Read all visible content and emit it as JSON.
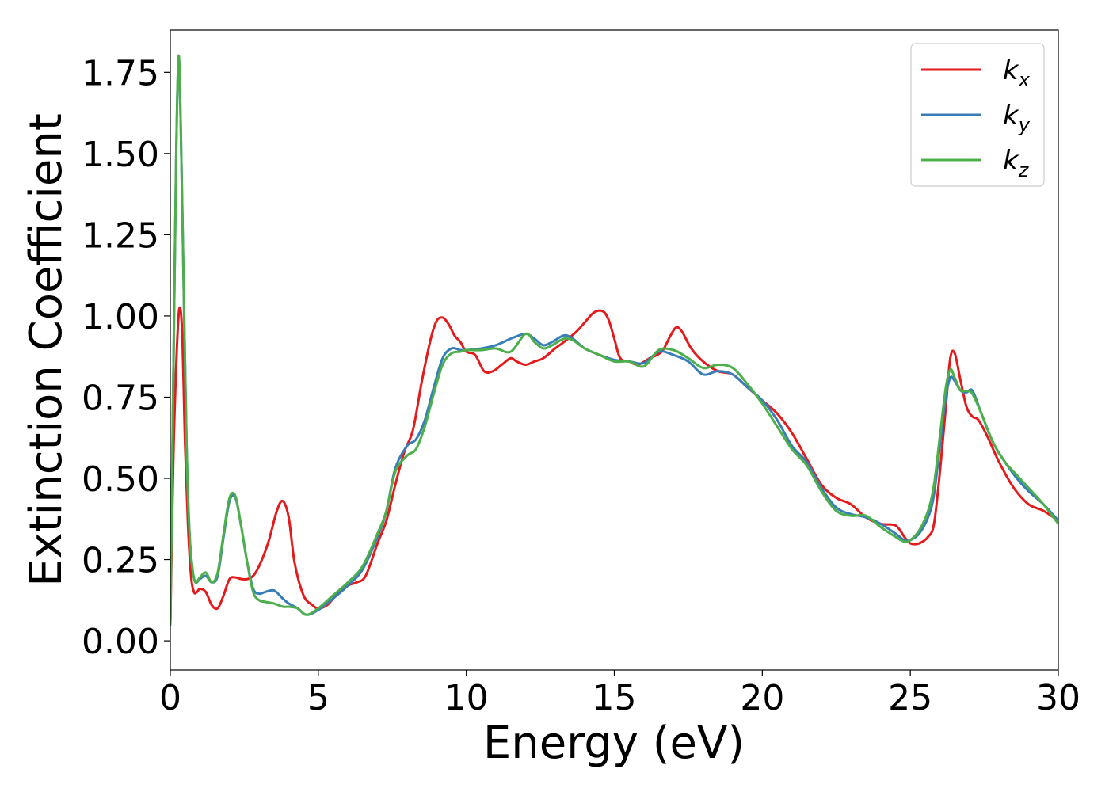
{
  "chart_data": {
    "type": "line",
    "title": "",
    "xlabel": "Energy (eV)",
    "ylabel": "Extinction Coefficient",
    "xlim": [
      0,
      30
    ],
    "ylim": [
      -0.09,
      1.88
    ],
    "xticks": [
      0,
      5,
      10,
      15,
      20,
      25,
      30
    ],
    "xtick_labels": [
      "0",
      "5",
      "10",
      "15",
      "20",
      "25",
      "30"
    ],
    "yticks": [
      0.0,
      0.25,
      0.5,
      0.75,
      1.0,
      1.25,
      1.5,
      1.75
    ],
    "ytick_labels": [
      "0.00",
      "0.25",
      "0.50",
      "0.75",
      "1.00",
      "1.25",
      "1.50",
      "1.75"
    ],
    "grid": false,
    "legend_position": "top-right",
    "series": [
      {
        "name": "k_x",
        "label_main": "k",
        "label_sub": "x",
        "color": "#e41a1c",
        "x": [
          0,
          0.1,
          0.2,
          0.3,
          0.4,
          0.5,
          0.6,
          0.7,
          0.8,
          0.9,
          1.0,
          1.2,
          1.4,
          1.6,
          1.8,
          2.0,
          2.2,
          2.4,
          2.6,
          2.8,
          3.0,
          3.3,
          3.6,
          3.8,
          4.0,
          4.2,
          4.5,
          4.8,
          5.0,
          5.3,
          5.6,
          6.0,
          6.3,
          6.6,
          7.0,
          7.3,
          7.6,
          7.9,
          8.2,
          8.5,
          8.8,
          9.0,
          9.2,
          9.4,
          9.6,
          9.8,
          10.0,
          10.3,
          10.6,
          10.9,
          11.2,
          11.5,
          11.7,
          12.0,
          12.3,
          12.6,
          13.0,
          13.3,
          13.7,
          14.0,
          14.3,
          14.6,
          14.8,
          15.0,
          15.2,
          15.5,
          15.8,
          16.2,
          16.6,
          16.9,
          17.1,
          17.3,
          17.6,
          18.0,
          18.5,
          19.0,
          19.5,
          20.0,
          20.5,
          21.0,
          21.5,
          22.0,
          22.5,
          23.0,
          23.5,
          24.0,
          24.5,
          24.8,
          25.0,
          25.3,
          25.6,
          25.8,
          26.0,
          26.2,
          26.35,
          26.5,
          26.7,
          26.9,
          27.1,
          27.3,
          27.6,
          28.0,
          28.5,
          29.0,
          29.5,
          30.0
        ],
        "y": [
          0.05,
          0.55,
          0.85,
          1.02,
          0.95,
          0.6,
          0.35,
          0.2,
          0.15,
          0.15,
          0.16,
          0.15,
          0.11,
          0.1,
          0.14,
          0.19,
          0.195,
          0.19,
          0.19,
          0.2,
          0.23,
          0.3,
          0.4,
          0.43,
          0.38,
          0.24,
          0.14,
          0.11,
          0.1,
          0.11,
          0.14,
          0.17,
          0.18,
          0.2,
          0.3,
          0.37,
          0.48,
          0.58,
          0.65,
          0.8,
          0.93,
          0.985,
          0.995,
          0.975,
          0.94,
          0.92,
          0.89,
          0.88,
          0.83,
          0.83,
          0.85,
          0.87,
          0.86,
          0.85,
          0.86,
          0.87,
          0.9,
          0.92,
          0.95,
          0.98,
          1.01,
          1.015,
          0.99,
          0.93,
          0.87,
          0.86,
          0.85,
          0.87,
          0.89,
          0.94,
          0.965,
          0.95,
          0.9,
          0.86,
          0.83,
          0.82,
          0.78,
          0.74,
          0.7,
          0.64,
          0.56,
          0.48,
          0.44,
          0.42,
          0.38,
          0.36,
          0.355,
          0.32,
          0.3,
          0.3,
          0.32,
          0.36,
          0.52,
          0.72,
          0.87,
          0.885,
          0.8,
          0.72,
          0.69,
          0.68,
          0.63,
          0.55,
          0.47,
          0.42,
          0.4,
          0.37
        ]
      },
      {
        "name": "k_y",
        "label_main": "k",
        "label_sub": "y",
        "color": "#377eb8",
        "x": [
          0,
          0.1,
          0.2,
          0.28,
          0.35,
          0.45,
          0.55,
          0.65,
          0.75,
          0.85,
          1.0,
          1.2,
          1.4,
          1.6,
          1.8,
          2.0,
          2.2,
          2.4,
          2.6,
          2.8,
          3.0,
          3.2,
          3.5,
          3.8,
          4.0,
          4.3,
          4.6,
          5.0,
          5.5,
          6.0,
          6.5,
          7.0,
          7.3,
          7.6,
          8.0,
          8.3,
          8.6,
          8.9,
          9.2,
          9.5,
          9.8,
          10.0,
          10.5,
          11.0,
          11.5,
          12.0,
          12.3,
          12.6,
          12.9,
          13.3,
          13.6,
          14.0,
          14.5,
          15.0,
          15.5,
          16.0,
          16.5,
          17.0,
          17.5,
          18.0,
          18.5,
          19.0,
          19.5,
          20.0,
          20.5,
          21.0,
          21.5,
          22.0,
          22.5,
          23.0,
          23.5,
          24.0,
          24.5,
          24.8,
          25.0,
          25.3,
          25.6,
          25.8,
          26.0,
          26.2,
          26.35,
          26.5,
          26.7,
          26.9,
          27.1,
          27.4,
          27.8,
          28.2,
          28.6,
          29.0,
          29.5,
          30.0
        ],
        "y": [
          0.05,
          0.8,
          1.5,
          1.79,
          1.6,
          1.1,
          0.6,
          0.33,
          0.22,
          0.18,
          0.19,
          0.2,
          0.18,
          0.2,
          0.32,
          0.43,
          0.44,
          0.35,
          0.24,
          0.16,
          0.145,
          0.15,
          0.155,
          0.13,
          0.115,
          0.1,
          0.08,
          0.095,
          0.13,
          0.17,
          0.22,
          0.32,
          0.4,
          0.53,
          0.6,
          0.62,
          0.68,
          0.78,
          0.87,
          0.9,
          0.895,
          0.895,
          0.9,
          0.91,
          0.93,
          0.945,
          0.93,
          0.91,
          0.92,
          0.94,
          0.93,
          0.9,
          0.88,
          0.865,
          0.86,
          0.855,
          0.89,
          0.88,
          0.86,
          0.82,
          0.83,
          0.82,
          0.78,
          0.74,
          0.68,
          0.6,
          0.55,
          0.47,
          0.41,
          0.39,
          0.38,
          0.36,
          0.33,
          0.31,
          0.31,
          0.33,
          0.38,
          0.45,
          0.6,
          0.75,
          0.81,
          0.8,
          0.77,
          0.765,
          0.77,
          0.7,
          0.61,
          0.55,
          0.5,
          0.46,
          0.42,
          0.37
        ]
      },
      {
        "name": "k_z",
        "label_main": "k",
        "label_sub": "z",
        "color": "#4daf4a",
        "x": [
          0,
          0.1,
          0.2,
          0.28,
          0.35,
          0.45,
          0.55,
          0.65,
          0.75,
          0.85,
          1.0,
          1.2,
          1.4,
          1.6,
          1.8,
          2.0,
          2.2,
          2.4,
          2.6,
          2.8,
          3.0,
          3.2,
          3.5,
          3.8,
          4.0,
          4.3,
          4.6,
          5.0,
          5.5,
          6.0,
          6.5,
          7.0,
          7.3,
          7.6,
          8.0,
          8.3,
          8.6,
          8.9,
          9.2,
          9.5,
          9.8,
          10.0,
          10.5,
          11.0,
          11.5,
          12.0,
          12.3,
          12.6,
          12.9,
          13.3,
          13.6,
          14.0,
          14.5,
          15.0,
          15.5,
          16.0,
          16.5,
          17.0,
          17.5,
          18.0,
          18.5,
          19.0,
          19.5,
          20.0,
          20.5,
          21.0,
          21.5,
          22.0,
          22.5,
          23.0,
          23.5,
          24.0,
          24.5,
          24.8,
          25.0,
          25.3,
          25.6,
          25.8,
          26.0,
          26.2,
          26.35,
          26.5,
          26.7,
          26.9,
          27.1,
          27.4,
          27.8,
          28.2,
          28.6,
          29.0,
          29.5,
          30.0
        ],
        "y": [
          0.05,
          0.8,
          1.5,
          1.8,
          1.6,
          1.1,
          0.6,
          0.33,
          0.22,
          0.18,
          0.195,
          0.21,
          0.18,
          0.21,
          0.33,
          0.44,
          0.445,
          0.35,
          0.24,
          0.15,
          0.125,
          0.12,
          0.115,
          0.105,
          0.105,
          0.1,
          0.08,
          0.1,
          0.14,
          0.18,
          0.23,
          0.33,
          0.4,
          0.52,
          0.57,
          0.59,
          0.66,
          0.76,
          0.85,
          0.885,
          0.89,
          0.895,
          0.895,
          0.9,
          0.89,
          0.945,
          0.92,
          0.9,
          0.91,
          0.93,
          0.925,
          0.9,
          0.88,
          0.86,
          0.86,
          0.845,
          0.895,
          0.895,
          0.87,
          0.84,
          0.85,
          0.84,
          0.79,
          0.73,
          0.66,
          0.59,
          0.54,
          0.46,
          0.4,
          0.385,
          0.385,
          0.35,
          0.32,
          0.305,
          0.31,
          0.34,
          0.4,
          0.48,
          0.63,
          0.78,
          0.835,
          0.81,
          0.77,
          0.77,
          0.76,
          0.7,
          0.61,
          0.55,
          0.51,
          0.47,
          0.42,
          0.36
        ]
      }
    ]
  }
}
